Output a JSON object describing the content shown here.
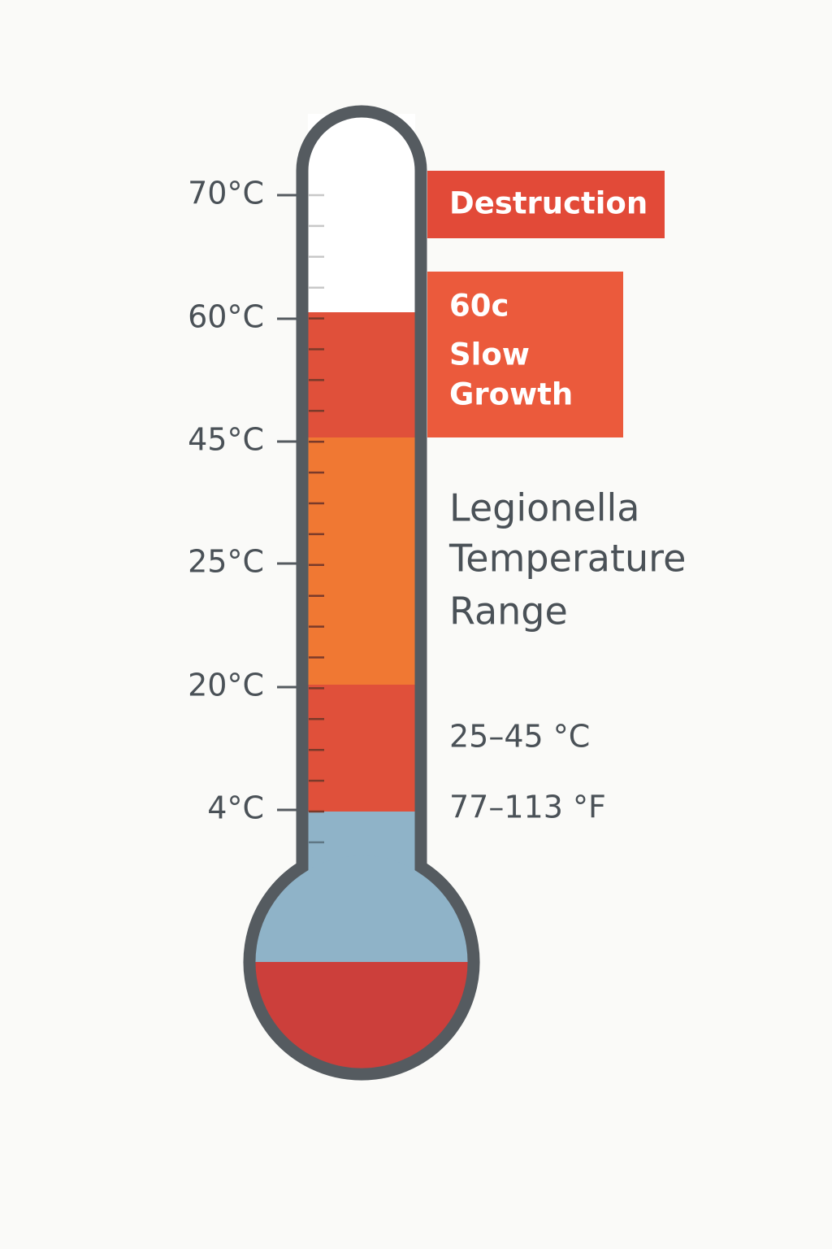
{
  "scale": {
    "labels": [
      "70°C",
      "60°C",
      "45°C",
      "25°C",
      "20°C",
      "4°C"
    ]
  },
  "destruction_box": {
    "label": "Destruction"
  },
  "slow_growth_box": {
    "lines": [
      "60c",
      "Slow",
      "Growth"
    ]
  },
  "title": {
    "lines": [
      "Legionella",
      "Temperature",
      "Range"
    ]
  },
  "range": {
    "celsius": "25–45 °C",
    "fahrenheit": "77–113 °F"
  }
}
